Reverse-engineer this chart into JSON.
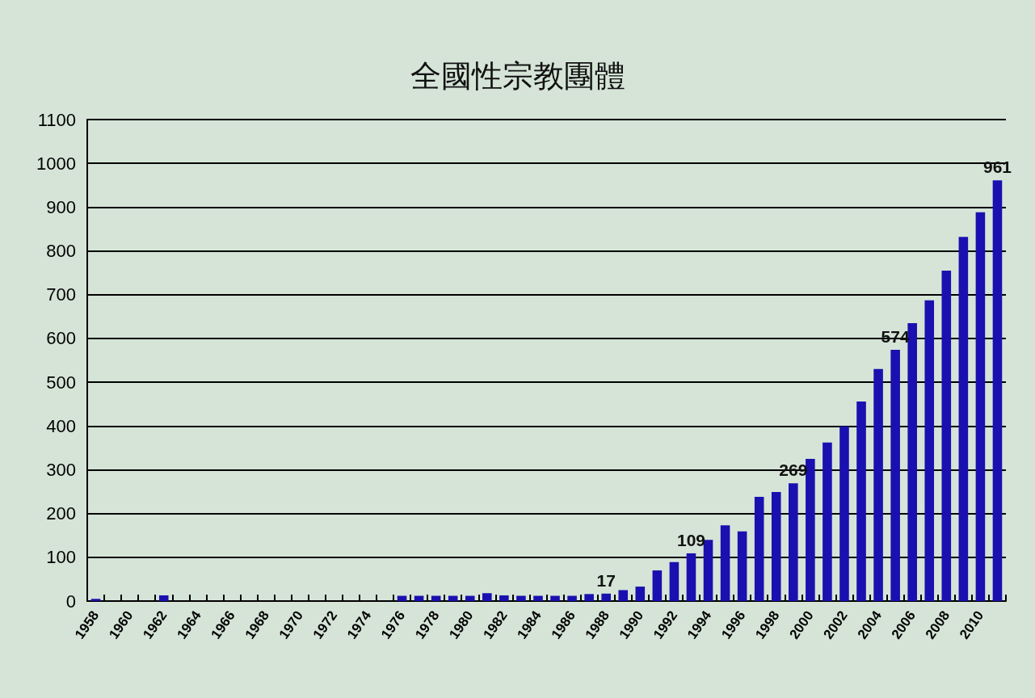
{
  "chart_data": {
    "type": "bar",
    "title": "全國性宗教團體",
    "categories": [
      "1958",
      null,
      "1960",
      null,
      "1962",
      null,
      "1964",
      null,
      "1966",
      null,
      "1968",
      null,
      "1970",
      null,
      "1972",
      null,
      "1974",
      null,
      "1976",
      null,
      "1978",
      null,
      "1980",
      null,
      "1982",
      null,
      "1984",
      null,
      "1986",
      null,
      "1988",
      null,
      "1990",
      null,
      "1992",
      null,
      "1994",
      null,
      "1996",
      null,
      "1998",
      null,
      "2000",
      null,
      "2002",
      null,
      "2004",
      null,
      "2006",
      null,
      "2008",
      null,
      "2010",
      null
    ],
    "values": [
      5,
      0,
      0,
      0,
      13,
      0,
      0,
      0,
      0,
      0,
      0,
      0,
      0,
      0,
      0,
      0,
      0,
      0,
      12,
      12,
      12,
      12,
      12,
      18,
      13,
      12,
      12,
      12,
      12,
      16,
      17,
      25,
      33,
      70,
      89,
      109,
      140,
      173,
      159,
      238,
      249,
      269,
      325,
      362,
      399,
      456,
      530,
      574,
      635,
      687,
      755,
      832,
      888,
      961
    ],
    "value_labels": [
      null,
      null,
      null,
      null,
      null,
      null,
      null,
      null,
      null,
      null,
      null,
      null,
      null,
      null,
      null,
      null,
      null,
      null,
      null,
      null,
      null,
      null,
      null,
      null,
      null,
      null,
      null,
      null,
      null,
      null,
      "17",
      null,
      null,
      null,
      null,
      "109",
      null,
      null,
      null,
      null,
      null,
      "269",
      null,
      null,
      null,
      null,
      null,
      "574",
      null,
      null,
      null,
      null,
      null,
      "961"
    ],
    "color": "#1a10b0",
    "ylim": [
      0,
      1100
    ],
    "yticks": [
      0,
      100,
      200,
      300,
      400,
      500,
      600,
      700,
      800,
      900,
      1000,
      1100
    ],
    "grid": "y"
  }
}
